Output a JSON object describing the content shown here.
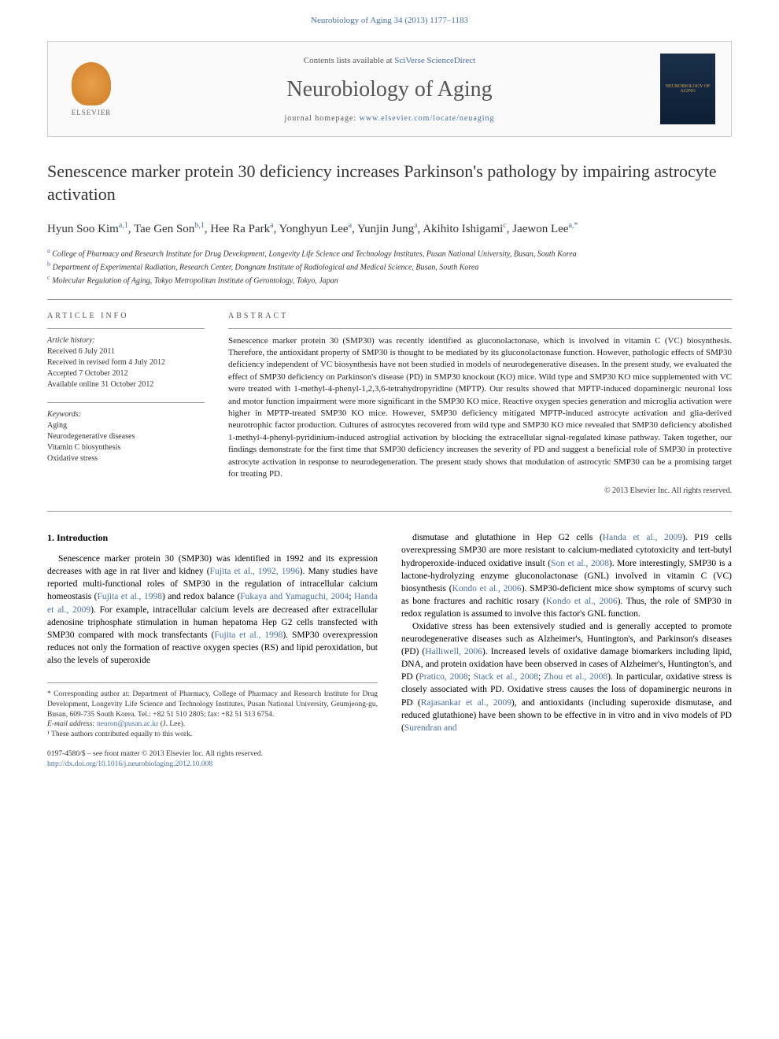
{
  "header": {
    "citation": "Neurobiology of Aging 34 (2013) 1177–1183"
  },
  "masthead": {
    "publisher": "ELSEVIER",
    "contents_prefix": "Contents lists available at ",
    "contents_link": "SciVerse ScienceDirect",
    "journal": "Neurobiology of Aging",
    "homepage_prefix": "journal homepage: ",
    "homepage_url": "www.elsevier.com/locate/neuaging",
    "cover_label": "NEUROBIOLOGY OF AGING"
  },
  "title": "Senescence marker protein 30 deficiency increases Parkinson's pathology by impairing astrocyte activation",
  "authors_html": "Hyun Soo Kim<sup>a,1</sup>, Tae Gen Son<sup>b,1</sup>, Hee Ra Park<sup>a</sup>, Yonghyun Lee<sup>a</sup>, Yunjin Jung<sup>a</sup>, Akihito Ishigami<sup>c</sup>, Jaewon Lee<sup>a,*</sup>",
  "affiliations": [
    {
      "sup": "a",
      "text": "College of Pharmacy and Research Institute for Drug Development, Longevity Life Science and Technology Institutes, Pusan National University, Busan, South Korea"
    },
    {
      "sup": "b",
      "text": "Department of Experimental Radiation, Research Center, Dongnam Institute of Radiological and Medical Science, Busan, South Korea"
    },
    {
      "sup": "c",
      "text": "Molecular Regulation of Aging, Tokyo Metropolitan Institute of Gerontology, Tokyo, Japan"
    }
  ],
  "article_info": {
    "heading": "ARTICLE INFO",
    "history_label": "Article history:",
    "history": [
      "Received 6 July 2011",
      "Received in revised form 4 July 2012",
      "Accepted 7 October 2012",
      "Available online 31 October 2012"
    ],
    "keywords_label": "Keywords:",
    "keywords": [
      "Aging",
      "Neurodegenerative diseases",
      "Vitamin C biosynthesis",
      "Oxidative stress"
    ]
  },
  "abstract": {
    "heading": "ABSTRACT",
    "text": "Senescence marker protein 30 (SMP30) was recently identified as gluconolactonase, which is involved in vitamin C (VC) biosynthesis. Therefore, the antioxidant property of SMP30 is thought to be mediated by its gluconolactonase function. However, pathologic effects of SMP30 deficiency independent of VC biosynthesis have not been studied in models of neurodegenerative diseases. In the present study, we evaluated the effect of SMP30 deficiency on Parkinson's disease (PD) in SMP30 knockout (KO) mice. Wild type and SMP30 KO mice supplemented with VC were treated with 1-methyl-4-phenyl-1,2,3,6-tetrahydropyridine (MPTP). Our results showed that MPTP-induced dopaminergic neuronal loss and motor function impairment were more significant in the SMP30 KO mice. Reactive oxygen species generation and microglia activation were higher in MPTP-treated SMP30 KO mice. However, SMP30 deficiency mitigated MPTP-induced astrocyte activation and glia-derived neurotrophic factor production. Cultures of astrocytes recovered from wild type and SMP30 KO mice revealed that SMP30 deficiency abolished 1-methyl-4-phenyl-pyridinium-induced astroglial activation by blocking the extracellular signal-regulated kinase pathway. Taken together, our findings demonstrate for the first time that SMP30 deficiency increases the severity of PD and suggest a beneficial role of SMP30 in protective astrocyte activation in response to neurodegeneration. The present study shows that modulation of astrocytic SMP30 can be a promising target for treating PD.",
    "copyright": "© 2013 Elsevier Inc. All rights reserved."
  },
  "section1": {
    "heading": "1. Introduction",
    "col1_p1_parts": [
      "Senescence marker protein 30 (SMP30) was identified in 1992 and its expression decreases with age in rat liver and kidney (",
      "Fujita et al., 1992, 1996",
      "). Many studies have reported multi-functional roles of SMP30 in the regulation of intracellular calcium homeostasis (",
      "Fujita et al., 1998",
      ") and redox balance (",
      "Fukaya and Yamaguchi, 2004",
      "; ",
      "Handa et al., 2009",
      "). For example, intracellular calcium levels are decreased after extracellular adenosine triphosphate stimulation in human hepatoma Hep G2 cells transfected with SMP30 compared with mock transfectants (",
      "Fujita et al., 1998",
      "). SMP30 overexpression reduces not only the formation of reactive oxygen species (RS) and lipid peroxidation, but also the levels of superoxide"
    ],
    "col2_p1_parts": [
      "dismutase and glutathione in Hep G2 cells (",
      "Handa et al., 2009",
      "). P19 cells overexpressing SMP30 are more resistant to calcium-mediated cytotoxicity and tert-butyl hydroperoxide-induced oxidative insult (",
      "Son et al., 2008",
      "). More interestingly, SMP30 is a lactone-hydrolyzing enzyme gluconolactonase (GNL) involved in vitamin C (VC) biosynthesis (",
      "Kondo et al., 2006",
      "). SMP30-deficient mice show symptoms of scurvy such as bone fractures and rachitic rosary (",
      "Kondo et al., 2006",
      "). Thus, the role of SMP30 in redox regulation is assumed to involve this factor's GNL function."
    ],
    "col2_p2_parts": [
      "Oxidative stress has been extensively studied and is generally accepted to promote neurodegenerative diseases such as Alzheimer's, Huntington's, and Parkinson's diseases (PD) (",
      "Halliwell, 2006",
      "). Increased levels of oxidative damage biomarkers including lipid, DNA, and protein oxidation have been observed in cases of Alzheimer's, Huntington's, and PD (",
      "Pratico, 2008",
      "; ",
      "Stack et al., 2008",
      "; ",
      "Zhou et al., 2008",
      "). In particular, oxidative stress is closely associated with PD. Oxidative stress causes the loss of dopaminergic neurons in PD (",
      "Rajasankar et al., 2009",
      "), and antioxidants (including superoxide dismutase, and reduced glutathione) have been shown to be effective in in vitro and in vivo models of PD (",
      "Surendran and"
    ]
  },
  "footnotes": {
    "corr": "* Corresponding author at: Department of Pharmacy, College of Pharmacy and Research Institute for Drug Development, Longevity Life Science and Technology Institutes, Pusan National University, Geumjeong-gu, Busan, 609-735 South Korea. Tel.: +82 51 510 2805; fax: +82 51 513 6754.",
    "email_label": "E-mail address: ",
    "email": "neuron@pusan.ac.kr",
    "email_suffix": " (J. Lee).",
    "note1": "¹ These authors contributed equally to this work."
  },
  "footer": {
    "line1": "0197-4580/$ – see front matter © 2013 Elsevier Inc. All rights reserved.",
    "doi": "http://dx.doi.org/10.1016/j.neurobiolaging.2012.10.008"
  },
  "colors": {
    "link": "#4a6fa5",
    "text": "#000000",
    "heading_grey": "#555555",
    "border": "#999999"
  }
}
